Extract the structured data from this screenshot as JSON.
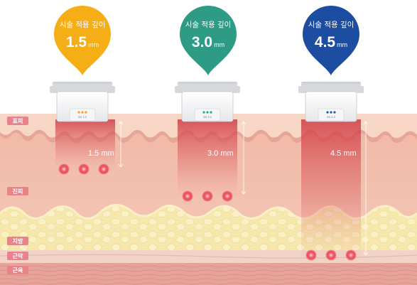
{
  "layers": {
    "epidermis": "표피",
    "dermis": "진피",
    "fat": "지방",
    "fascia": "근막",
    "muscle": "근육"
  },
  "pins": [
    {
      "caption": "시술 적용 깊이",
      "value": "1.5",
      "unit": "mm",
      "color": "#f6ae16"
    },
    {
      "caption": "시술 적용 깊이",
      "value": "3.0",
      "unit": "mm",
      "color": "#2e9b85"
    },
    {
      "caption": "시술 적용 깊이",
      "value": "4.5",
      "unit": "mm",
      "color": "#1d4da0"
    }
  ],
  "depth_labels": [
    "1.5 mm",
    "3.0 mm",
    "4.5 mm"
  ],
  "cartridge_labels": [
    "DS 1.5",
    "DS 3.0",
    "DS 4.5"
  ],
  "colors": {
    "tag": "#e8838c",
    "dot": "#e8485a",
    "dot_columns": [
      "#f0a025",
      "#2aa68f",
      "#2b56a8"
    ]
  }
}
